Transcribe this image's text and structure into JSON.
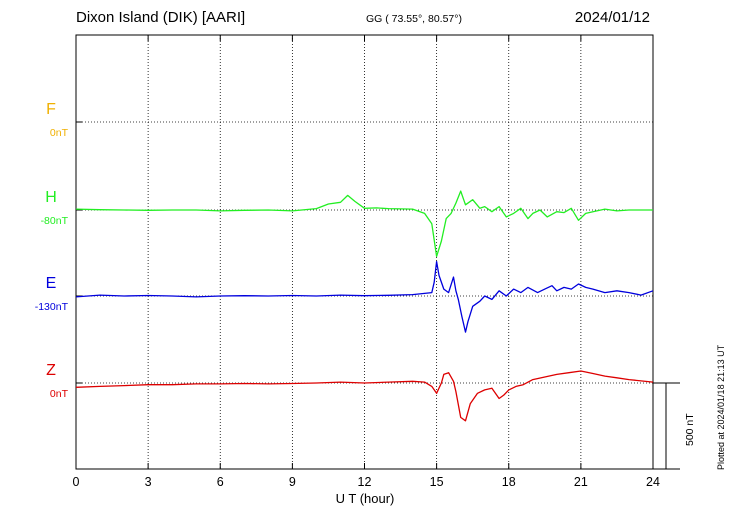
{
  "header": {
    "station": "Dixon Island (DIK)  [AARI]",
    "coords": "GG ( 73.55°,  80.57°)",
    "date": "2024/01/12"
  },
  "plotted": "Plotted at 2024/01/18 21:13 UT",
  "scale_bar": {
    "label": "500 nT",
    "value": 500
  },
  "chart_data": {
    "type": "line",
    "xlabel": "U T (hour)",
    "xlim": [
      0,
      24
    ],
    "xticks": [
      "0",
      "3",
      "6",
      "9",
      "12",
      "15",
      "18",
      "21",
      "24"
    ],
    "grid": true,
    "series": [
      {
        "name": "F",
        "baseline_label": "0nT",
        "color": "#f0b000",
        "values": []
      },
      {
        "name": "H",
        "baseline_label": "-80nT",
        "color": "#22ee22",
        "values": [
          [
            0,
            5
          ],
          [
            1,
            2
          ],
          [
            2,
            0
          ],
          [
            3,
            -2
          ],
          [
            4,
            0
          ],
          [
            5,
            0
          ],
          [
            6,
            -5
          ],
          [
            7,
            -2
          ],
          [
            8,
            0
          ],
          [
            9,
            -5
          ],
          [
            10,
            8
          ],
          [
            10.5,
            35
          ],
          [
            11,
            45
          ],
          [
            11.3,
            85
          ],
          [
            11.6,
            50
          ],
          [
            12,
            10
          ],
          [
            12.5,
            12
          ],
          [
            13,
            8
          ],
          [
            14,
            5
          ],
          [
            14.5,
            -20
          ],
          [
            14.8,
            -80
          ],
          [
            15.0,
            -270
          ],
          [
            15.2,
            -180
          ],
          [
            15.4,
            -50
          ],
          [
            15.6,
            -20
          ],
          [
            15.8,
            40
          ],
          [
            16.0,
            110
          ],
          [
            16.2,
            30
          ],
          [
            16.5,
            60
          ],
          [
            16.8,
            10
          ],
          [
            17.0,
            20
          ],
          [
            17.3,
            -10
          ],
          [
            17.6,
            20
          ],
          [
            17.9,
            -40
          ],
          [
            18.2,
            -20
          ],
          [
            18.5,
            10
          ],
          [
            18.8,
            -50
          ],
          [
            19.0,
            -20
          ],
          [
            19.3,
            0
          ],
          [
            19.6,
            -40
          ],
          [
            20.0,
            -10
          ],
          [
            20.3,
            -15
          ],
          [
            20.6,
            10
          ],
          [
            20.9,
            -60
          ],
          [
            21.2,
            -20
          ],
          [
            21.5,
            -10
          ],
          [
            22,
            5
          ],
          [
            22.5,
            -5
          ],
          [
            23,
            0
          ],
          [
            24,
            0
          ]
        ]
      },
      {
        "name": "E",
        "baseline_label": "-130nT",
        "color": "#0000dd",
        "values": [
          [
            0,
            -5
          ],
          [
            1,
            5
          ],
          [
            2,
            0
          ],
          [
            3,
            3
          ],
          [
            4,
            0
          ],
          [
            5,
            -5
          ],
          [
            6,
            0
          ],
          [
            7,
            2
          ],
          [
            8,
            0
          ],
          [
            9,
            3
          ],
          [
            10,
            0
          ],
          [
            11,
            5
          ],
          [
            12,
            2
          ],
          [
            13,
            4
          ],
          [
            14,
            8
          ],
          [
            14.8,
            20
          ],
          [
            14.9,
            80
          ],
          [
            15.0,
            200
          ],
          [
            15.1,
            120
          ],
          [
            15.3,
            40
          ],
          [
            15.5,
            20
          ],
          [
            15.7,
            110
          ],
          [
            15.8,
            30
          ],
          [
            15.9,
            -20
          ],
          [
            16.05,
            -120
          ],
          [
            16.2,
            -210
          ],
          [
            16.3,
            -150
          ],
          [
            16.5,
            -60
          ],
          [
            16.8,
            -30
          ],
          [
            17.0,
            0
          ],
          [
            17.3,
            -20
          ],
          [
            17.6,
            30
          ],
          [
            17.9,
            0
          ],
          [
            18.2,
            40
          ],
          [
            18.5,
            20
          ],
          [
            18.8,
            50
          ],
          [
            19.2,
            20
          ],
          [
            19.5,
            40
          ],
          [
            19.8,
            60
          ],
          [
            20.0,
            30
          ],
          [
            20.3,
            50
          ],
          [
            20.6,
            40
          ],
          [
            20.9,
            70
          ],
          [
            21.2,
            50
          ],
          [
            21.5,
            40
          ],
          [
            22,
            20
          ],
          [
            22.5,
            30
          ],
          [
            23,
            20
          ],
          [
            23.5,
            5
          ],
          [
            24,
            30
          ]
        ]
      },
      {
        "name": "Z",
        "baseline_label": "0nT",
        "color": "#dd0000",
        "values": [
          [
            0,
            -25
          ],
          [
            1,
            -20
          ],
          [
            2,
            -15
          ],
          [
            3,
            -10
          ],
          [
            4,
            -10
          ],
          [
            5,
            -5
          ],
          [
            6,
            -5
          ],
          [
            7,
            -3
          ],
          [
            8,
            -5
          ],
          [
            9,
            -3
          ],
          [
            10,
            0
          ],
          [
            11,
            5
          ],
          [
            12,
            0
          ],
          [
            13,
            5
          ],
          [
            14,
            10
          ],
          [
            14.5,
            5
          ],
          [
            14.8,
            -20
          ],
          [
            15.0,
            -60
          ],
          [
            15.2,
            0
          ],
          [
            15.3,
            50
          ],
          [
            15.5,
            60
          ],
          [
            15.7,
            10
          ],
          [
            15.8,
            -50
          ],
          [
            16.0,
            -200
          ],
          [
            16.2,
            -220
          ],
          [
            16.4,
            -120
          ],
          [
            16.7,
            -60
          ],
          [
            17.0,
            -40
          ],
          [
            17.3,
            -30
          ],
          [
            17.6,
            -90
          ],
          [
            17.8,
            -70
          ],
          [
            18.0,
            -40
          ],
          [
            18.3,
            -20
          ],
          [
            18.6,
            -10
          ],
          [
            19.0,
            20
          ],
          [
            19.5,
            35
          ],
          [
            20.0,
            50
          ],
          [
            20.5,
            60
          ],
          [
            21.0,
            70
          ],
          [
            21.5,
            55
          ],
          [
            22,
            40
          ],
          [
            22.5,
            30
          ],
          [
            23,
            20
          ],
          [
            24,
            5
          ]
        ]
      }
    ]
  }
}
